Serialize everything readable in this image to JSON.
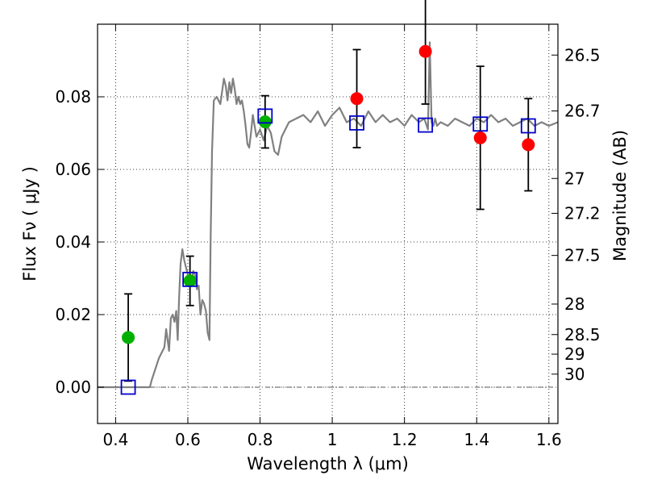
{
  "chart_data": {
    "type": "scatter",
    "xlabel": "Wavelength  λ (μm)",
    "ylabel": "Flux  Fν  ( μJy )",
    "y2label": "Magnitude (AB)",
    "xlim": [
      0.35,
      1.625
    ],
    "ylim": [
      -0.01,
      0.1
    ],
    "grid": true,
    "x_ticks": [
      0.4,
      0.6,
      0.8,
      1.0,
      1.2,
      1.4,
      1.6
    ],
    "x_tick_labels": [
      "0.4",
      "0.6",
      "0.8",
      "1",
      "1.2",
      "1.4",
      "1.6"
    ],
    "y_ticks": [
      0.0,
      0.02,
      0.04,
      0.06,
      0.08
    ],
    "y_tick_labels": [
      "0.00",
      "0.02",
      "0.04",
      "0.06",
      "0.08"
    ],
    "y2_ticks": [
      {
        "flux": 0.0915,
        "label": "26.5"
      },
      {
        "flux": 0.0761,
        "label": "26.7"
      },
      {
        "flux": 0.0575,
        "label": "27"
      },
      {
        "flux": 0.0479,
        "label": "27.2"
      },
      {
        "flux": 0.0363,
        "label": "27.5"
      },
      {
        "flux": 0.0229,
        "label": "28"
      },
      {
        "flux": 0.0145,
        "label": "28.5"
      },
      {
        "flux": 0.0091,
        "label": "29"
      },
      {
        "flux": 0.0036,
        "label": "30"
      }
    ],
    "series": [
      {
        "marker": "circle",
        "color": "#00b000",
        "points": [
          {
            "x": 0.435,
            "y": 0.0137,
            "err": 0.012
          },
          {
            "x": 0.606,
            "y": 0.0293,
            "err": 0.0068
          },
          {
            "x": 0.814,
            "y": 0.0731,
            "err": 0.0072
          }
        ]
      },
      {
        "marker": "circle",
        "color": "#ff0000",
        "points": [
          {
            "x": 1.068,
            "y": 0.0795,
            "err": 0.0135
          },
          {
            "x": 1.258,
            "y": 0.0925,
            "err": 0.0145
          },
          {
            "x": 1.41,
            "y": 0.0687,
            "err": 0.0197
          },
          {
            "x": 1.543,
            "y": 0.0668,
            "err": 0.0127
          }
        ]
      },
      {
        "marker": "open-square",
        "color": "#0000cc",
        "points": [
          {
            "x": 0.435,
            "y": 0.0
          },
          {
            "x": 0.606,
            "y": 0.0297
          },
          {
            "x": 0.814,
            "y": 0.0747
          },
          {
            "x": 1.068,
            "y": 0.0728
          },
          {
            "x": 1.258,
            "y": 0.0722
          },
          {
            "x": 1.41,
            "y": 0.0725
          },
          {
            "x": 1.543,
            "y": 0.072
          }
        ]
      }
    ],
    "spectrum": {
      "color": "#808080",
      "x": [
        0.35,
        0.495,
        0.5,
        0.52,
        0.535,
        0.54,
        0.548,
        0.553,
        0.558,
        0.563,
        0.568,
        0.572,
        0.576,
        0.58,
        0.585,
        0.59,
        0.595,
        0.6,
        0.605,
        0.61,
        0.615,
        0.62,
        0.625,
        0.63,
        0.635,
        0.64,
        0.645,
        0.65,
        0.655,
        0.66,
        0.663,
        0.667,
        0.672,
        0.68,
        0.69,
        0.7,
        0.705,
        0.71,
        0.715,
        0.72,
        0.725,
        0.73,
        0.735,
        0.74,
        0.745,
        0.75,
        0.755,
        0.76,
        0.765,
        0.77,
        0.775,
        0.78,
        0.785,
        0.79,
        0.8,
        0.81,
        0.82,
        0.83,
        0.84,
        0.85,
        0.86,
        0.88,
        0.9,
        0.92,
        0.94,
        0.96,
        0.98,
        1.0,
        1.02,
        1.04,
        1.06,
        1.08,
        1.1,
        1.12,
        1.14,
        1.16,
        1.18,
        1.2,
        1.22,
        1.24,
        1.255,
        1.265,
        1.27,
        1.275,
        1.28,
        1.285,
        1.29,
        1.3,
        1.32,
        1.34,
        1.36,
        1.38,
        1.4,
        1.42,
        1.44,
        1.46,
        1.48,
        1.5,
        1.52,
        1.54,
        1.56,
        1.58,
        1.6,
        1.625
      ],
      "y": [
        0.0,
        0.0,
        0.002,
        0.008,
        0.011,
        0.016,
        0.01,
        0.019,
        0.02,
        0.018,
        0.021,
        0.013,
        0.025,
        0.034,
        0.038,
        0.035,
        0.033,
        0.031,
        0.03,
        0.029,
        0.032,
        0.031,
        0.027,
        0.028,
        0.02,
        0.024,
        0.023,
        0.021,
        0.015,
        0.013,
        0.04,
        0.065,
        0.079,
        0.08,
        0.078,
        0.085,
        0.083,
        0.079,
        0.084,
        0.081,
        0.085,
        0.082,
        0.078,
        0.08,
        0.078,
        0.079,
        0.076,
        0.072,
        0.067,
        0.066,
        0.07,
        0.075,
        0.072,
        0.069,
        0.071,
        0.068,
        0.072,
        0.07,
        0.065,
        0.064,
        0.069,
        0.073,
        0.074,
        0.075,
        0.073,
        0.076,
        0.072,
        0.075,
        0.077,
        0.073,
        0.074,
        0.072,
        0.076,
        0.073,
        0.075,
        0.073,
        0.074,
        0.072,
        0.075,
        0.073,
        0.074,
        0.071,
        0.095,
        0.073,
        0.072,
        0.074,
        0.072,
        0.073,
        0.072,
        0.074,
        0.073,
        0.072,
        0.074,
        0.073,
        0.075,
        0.073,
        0.074,
        0.072,
        0.073,
        0.074,
        0.072,
        0.073,
        0.072,
        0.073
      ]
    }
  }
}
